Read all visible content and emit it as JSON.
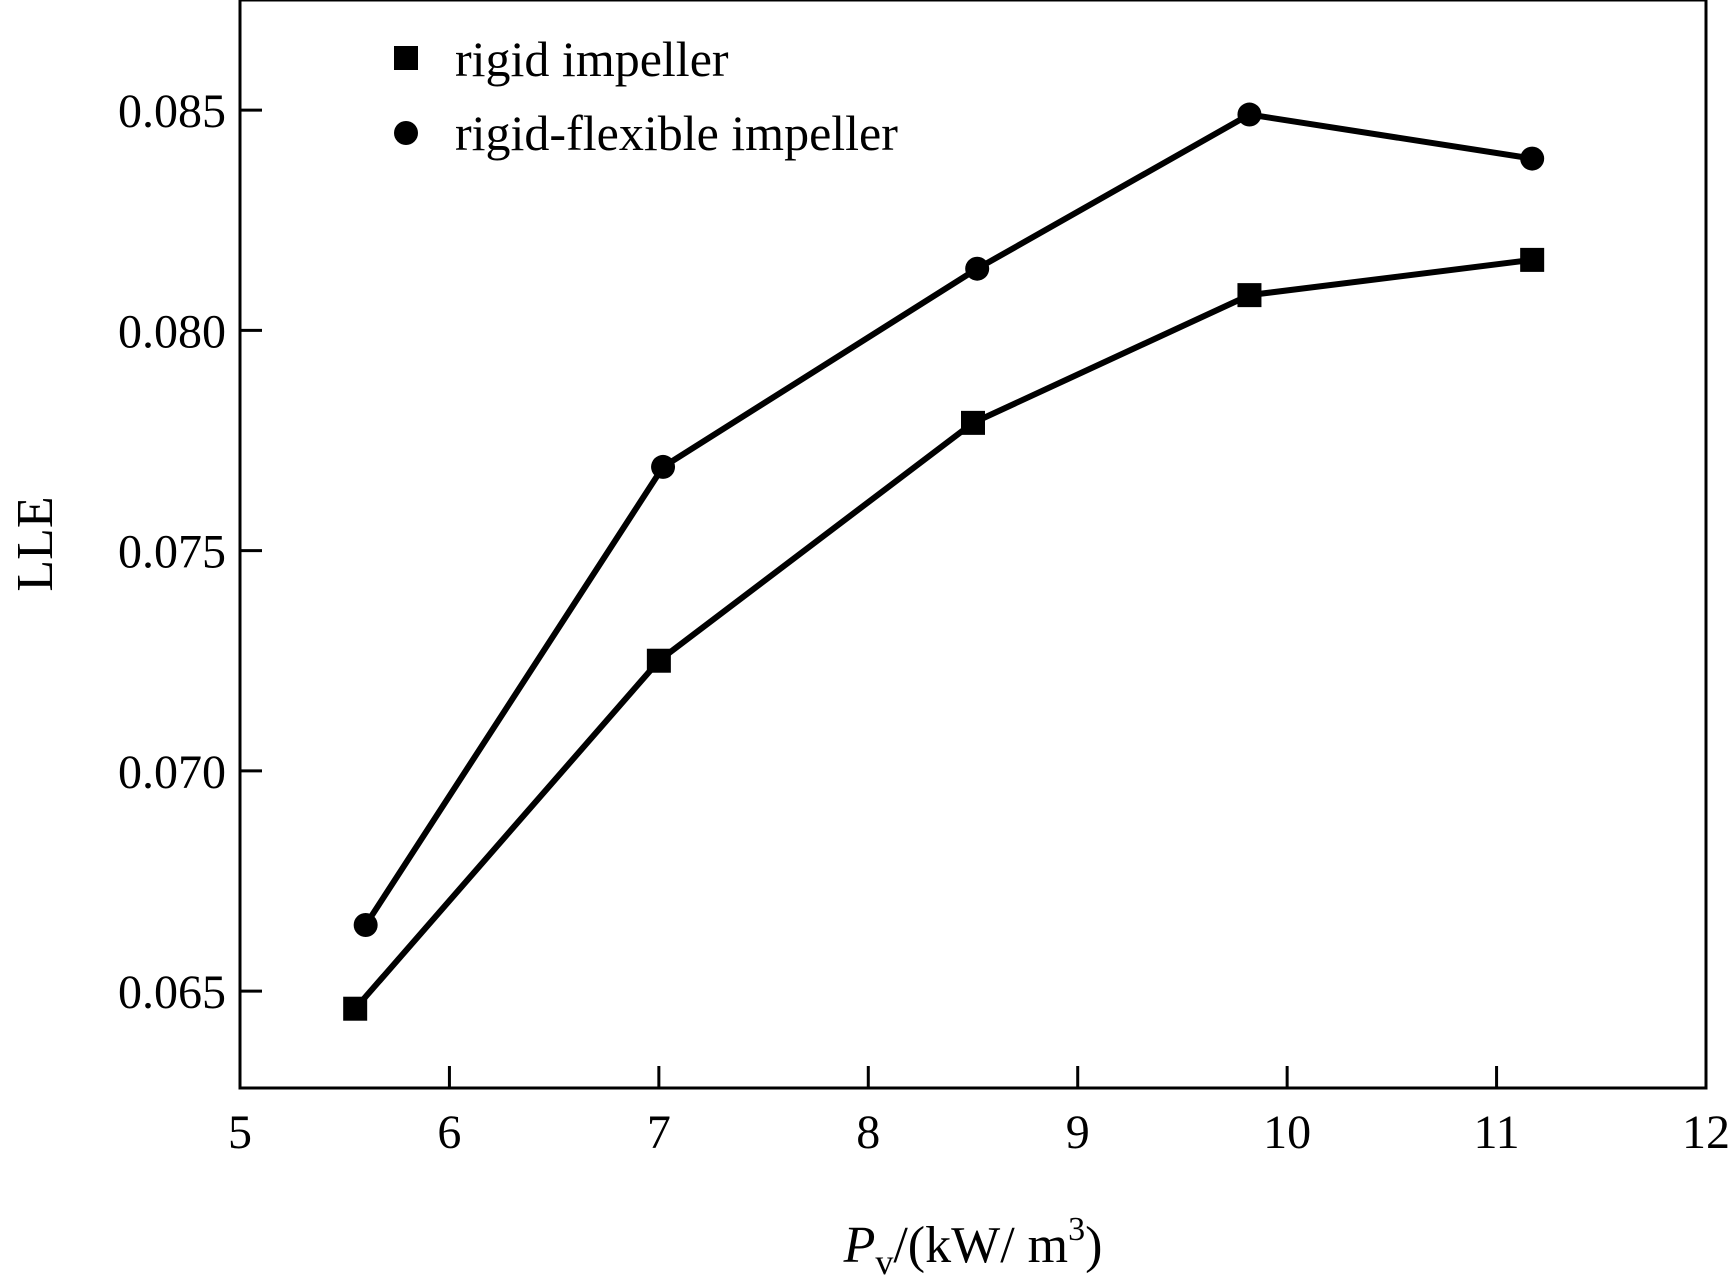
{
  "chart_data": {
    "type": "line",
    "title": "",
    "xlabel": {
      "main": "P",
      "sub": "v",
      "unit_prefix": "/(kW/ m",
      "sup": "3",
      "unit_suffix": ")"
    },
    "ylabel": "LLE",
    "xlim": [
      5,
      12
    ],
    "ylim": [
      0.0628,
      0.0875
    ],
    "x_ticks": [
      5,
      6,
      7,
      8,
      9,
      10,
      11,
      12
    ],
    "x_tick_labels": [
      "5",
      "6",
      "7",
      "8",
      "9",
      "10",
      "11",
      "12"
    ],
    "y_ticks": [
      0.065,
      0.07,
      0.075,
      0.08,
      0.085
    ],
    "y_tick_labels": [
      "0.065",
      "0.070",
      "0.075",
      "0.080",
      "0.085"
    ],
    "grid": false,
    "legend_position": "top-left",
    "series": [
      {
        "name": "rigid impeller",
        "marker": "square",
        "color": "#000000",
        "x": [
          5.55,
          7.0,
          8.5,
          9.82,
          11.17
        ],
        "y": [
          0.0646,
          0.0725,
          0.0779,
          0.0808,
          0.0816
        ]
      },
      {
        "name": "rigid-flexible impeller",
        "marker": "circle",
        "color": "#000000",
        "x": [
          5.6,
          7.02,
          8.52,
          9.82,
          11.17
        ],
        "y": [
          0.0665,
          0.0769,
          0.0814,
          0.0849,
          0.0839
        ]
      }
    ]
  }
}
